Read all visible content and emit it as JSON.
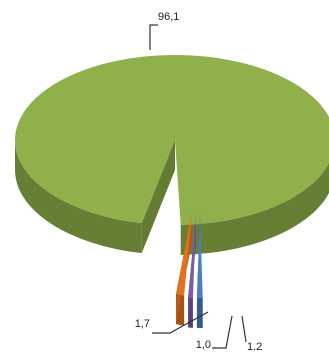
{
  "chart_data": {
    "type": "pie",
    "style": "3d-exploded",
    "title": "",
    "legend": "none",
    "series": [
      {
        "values": [
          96.1,
          1.7,
          1.0,
          1.2
        ],
        "labels": [
          "96,1",
          "1,7",
          "1,0",
          "1.2"
        ],
        "colors": [
          "#8fb04a",
          "#e2711d",
          "#7c5aa6",
          "#4a7fc1"
        ]
      }
    ]
  }
}
